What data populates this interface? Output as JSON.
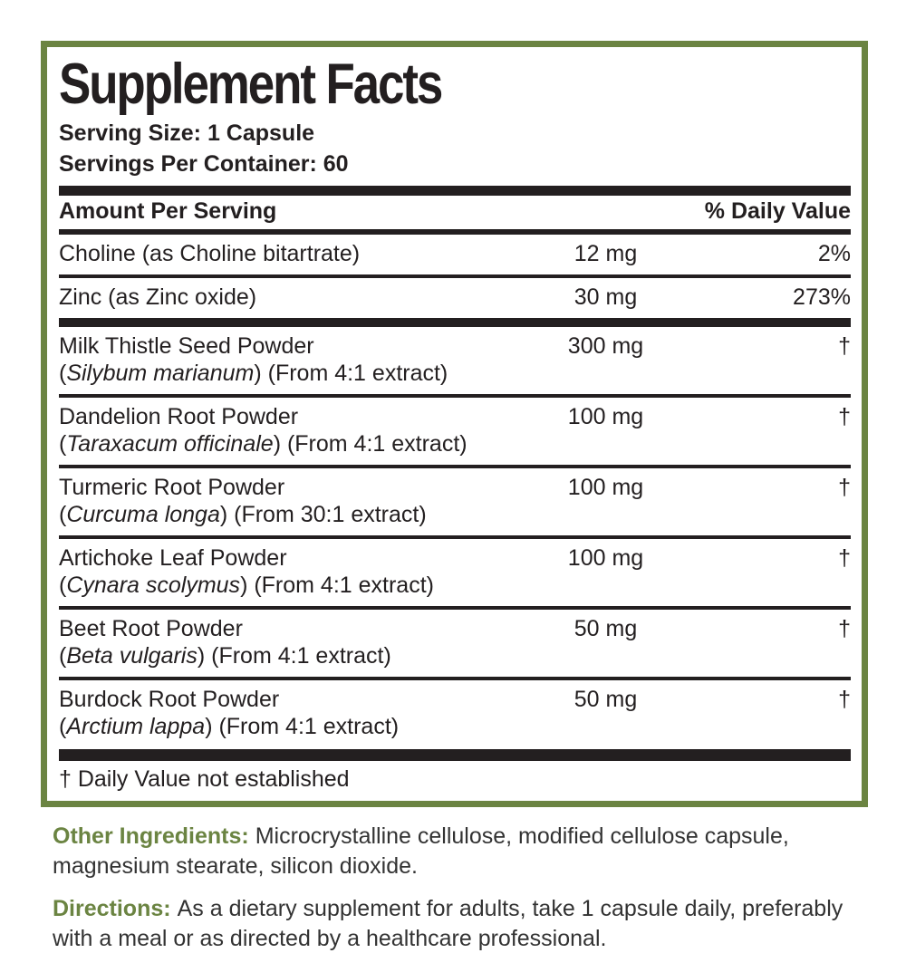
{
  "colors": {
    "accent_green": "#6b8442",
    "text_black": "#231f20"
  },
  "panel": {
    "title": "Supplement Facts",
    "serving_size": "Serving Size: 1 Capsule",
    "servings_per_container": "Servings Per Container: 60",
    "header": {
      "amount_label": "Amount Per Serving",
      "dv_label": "% Daily Value"
    },
    "rows": [
      {
        "name": "Choline (as Choline bitartrate)",
        "amount": "12 mg",
        "dv": "2%"
      },
      {
        "name": "Zinc (as Zinc oxide)",
        "amount": "30 mg",
        "dv": "273%"
      },
      {
        "name": "Milk Thistle Seed Powder",
        "botanical_open": "(",
        "botanical": "Silybum marianum",
        "botanical_rest": ") (From 4:1 extract)",
        "amount": "300 mg",
        "dv": "†"
      },
      {
        "name": "Dandelion Root Powder",
        "botanical_open": "(",
        "botanical": "Taraxacum officinale",
        "botanical_rest": ") (From 4:1 extract)",
        "amount": "100 mg",
        "dv": "†"
      },
      {
        "name": "Turmeric Root Powder",
        "botanical_open": "(",
        "botanical": "Curcuma longa",
        "botanical_rest": ") (From 30:1 extract)",
        "amount": "100 mg",
        "dv": "†"
      },
      {
        "name": "Artichoke Leaf Powder",
        "botanical_open": "(",
        "botanical": "Cynara scolymus",
        "botanical_rest": ") (From 4:1 extract)",
        "amount": "100 mg",
        "dv": "†"
      },
      {
        "name": "Beet Root Powder",
        "botanical_open": "(",
        "botanical": "Beta vulgaris",
        "botanical_rest": ") (From 4:1 extract)",
        "amount": "50 mg",
        "dv": "†"
      },
      {
        "name": "Burdock Root Powder",
        "botanical_open": "(",
        "botanical": "Arctium lappa",
        "botanical_rest": ") (From 4:1 extract)",
        "amount": "50 mg",
        "dv": "†"
      }
    ],
    "footnote": "† Daily Value not established"
  },
  "other_ingredients": {
    "label": "Other Ingredients:",
    "text": "Microcrystalline cellulose, modified cellulose capsule, magnesium stearate, silicon dioxide."
  },
  "directions": {
    "label": "Directions:",
    "text": "As a dietary supplement for adults, take 1 capsule daily, preferably with a meal or as directed by a healthcare professional."
  }
}
